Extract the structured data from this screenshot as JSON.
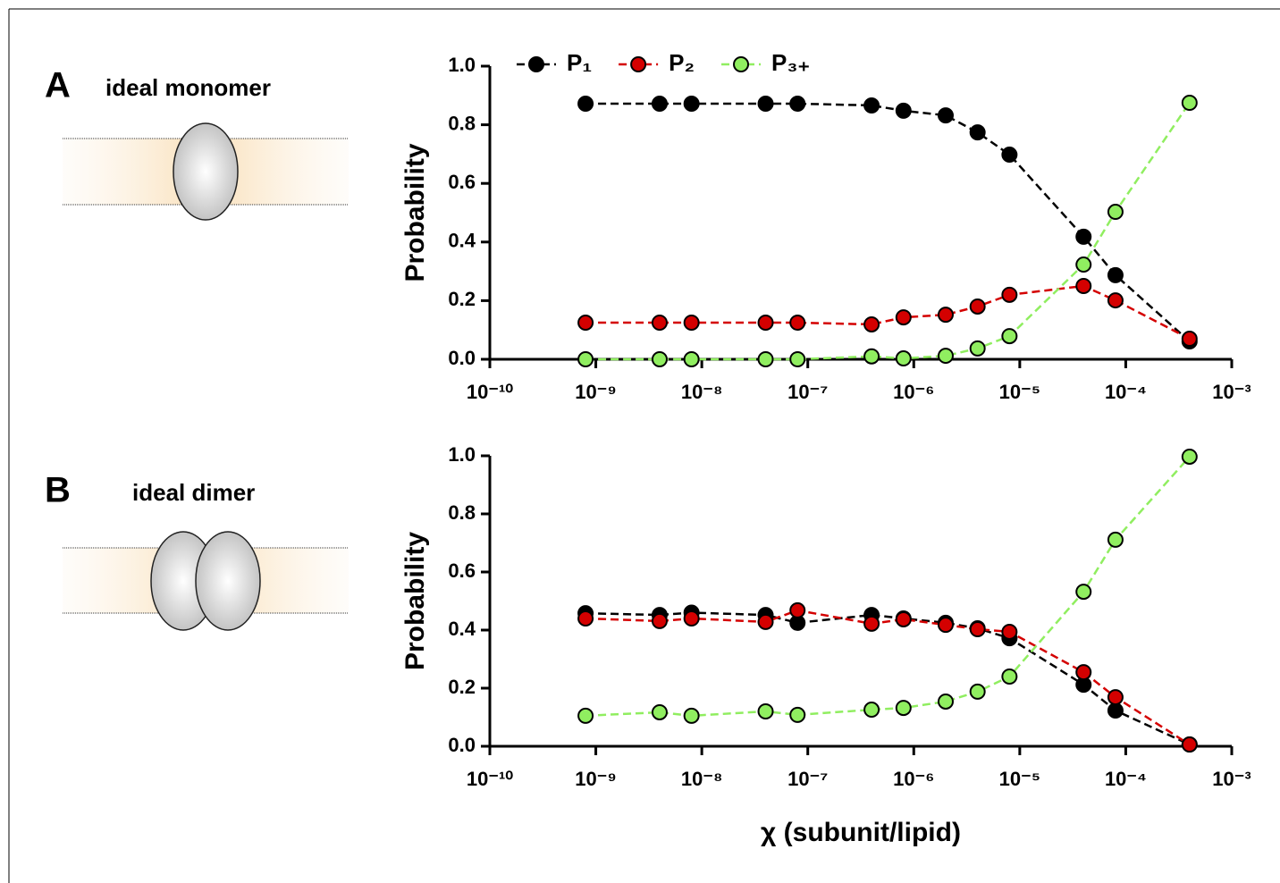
{
  "chart_data": [
    {
      "type": "line",
      "panel": "A",
      "caption": "ideal monomer",
      "ylabel": "Probability",
      "xscale": "log",
      "legend": "top-left",
      "x": [
        8e-10,
        4e-09,
        8e-09,
        4e-08,
        8e-08,
        4e-07,
        8e-07,
        2e-06,
        4e-06,
        8e-06,
        4e-05,
        8e-05,
        0.0004
      ],
      "xlim": [
        1e-10,
        0.001
      ],
      "xticks": [
        {
          "value": 1e-10,
          "label": "10⁻¹⁰"
        },
        {
          "value": 1e-09,
          "label": "10⁻⁹"
        },
        {
          "value": 1e-08,
          "label": "10⁻⁸"
        },
        {
          "value": 1e-07,
          "label": "10⁻⁷"
        },
        {
          "value": 1e-06,
          "label": "10⁻⁶"
        },
        {
          "value": 1e-05,
          "label": "10⁻⁵"
        },
        {
          "value": 0.0001,
          "label": "10⁻⁴"
        },
        {
          "value": 0.001,
          "label": "10⁻³"
        }
      ],
      "ylim": [
        0,
        1
      ],
      "yticks": [
        {
          "value": 0,
          "label": "0.0"
        },
        0.2,
        0.4,
        0.6,
        0.8,
        {
          "value": 1,
          "label": "1.0"
        }
      ],
      "series": [
        {
          "name": "P₁",
          "color": "#000000",
          "values": [
            0.872,
            0.872,
            0.872,
            0.872,
            0.872,
            0.866,
            0.848,
            0.832,
            0.774,
            0.698,
            0.418,
            0.287,
            0.061
          ]
        },
        {
          "name": "P₂",
          "color": "#d40000",
          "values": [
            0.125,
            0.125,
            0.125,
            0.125,
            0.125,
            0.119,
            0.143,
            0.152,
            0.18,
            0.22,
            0.25,
            0.201,
            0.07
          ]
        },
        {
          "name": "P₃₊",
          "color": "#90ee60",
          "values": [
            0,
            0,
            0,
            0,
            0,
            0.01,
            0.003,
            0.012,
            0.037,
            0.079,
            0.323,
            0.503,
            0.875
          ]
        }
      ]
    },
    {
      "type": "line",
      "panel": "B",
      "caption": "ideal dimer",
      "ylabel": "Probability",
      "xlabel": "χ (subunit/lipid)",
      "xscale": "log",
      "x": [
        8e-10,
        4e-09,
        8e-09,
        4e-08,
        8e-08,
        4e-07,
        8e-07,
        2e-06,
        4e-06,
        8e-06,
        4e-05,
        8e-05,
        0.0004
      ],
      "xlim": [
        1e-10,
        0.001
      ],
      "xticks": [
        {
          "value": 1e-10,
          "label": "10⁻¹⁰"
        },
        {
          "value": 1e-09,
          "label": "10⁻⁹"
        },
        {
          "value": 1e-08,
          "label": "10⁻⁸"
        },
        {
          "value": 1e-07,
          "label": "10⁻⁷"
        },
        {
          "value": 1e-06,
          "label": "10⁻⁶"
        },
        {
          "value": 1e-05,
          "label": "10⁻⁵"
        },
        {
          "value": 0.0001,
          "label": "10⁻⁴"
        },
        {
          "value": 0.001,
          "label": "10⁻³"
        }
      ],
      "ylim": [
        0,
        1
      ],
      "yticks": [
        {
          "value": 0,
          "label": "0.0"
        },
        0.2,
        0.4,
        0.6,
        0.8,
        {
          "value": 1,
          "label": "1.0"
        }
      ],
      "series": [
        {
          "name": "P₁",
          "color": "#000000",
          "values": [
            0.458,
            0.452,
            0.46,
            0.452,
            0.425,
            0.452,
            0.44,
            0.425,
            0.406,
            0.372,
            0.212,
            0.123,
            0.006
          ]
        },
        {
          "name": "P₂",
          "color": "#d40000",
          "values": [
            0.44,
            0.431,
            0.44,
            0.428,
            0.468,
            0.422,
            0.437,
            0.418,
            0.403,
            0.394,
            0.255,
            0.169,
            0.006
          ]
        },
        {
          "name": "P₃₊",
          "color": "#90ee60",
          "values": [
            0.105,
            0.117,
            0.105,
            0.12,
            0.108,
            0.126,
            0.132,
            0.154,
            0.188,
            0.24,
            0.532,
            0.711,
            0.997
          ]
        }
      ]
    }
  ]
}
